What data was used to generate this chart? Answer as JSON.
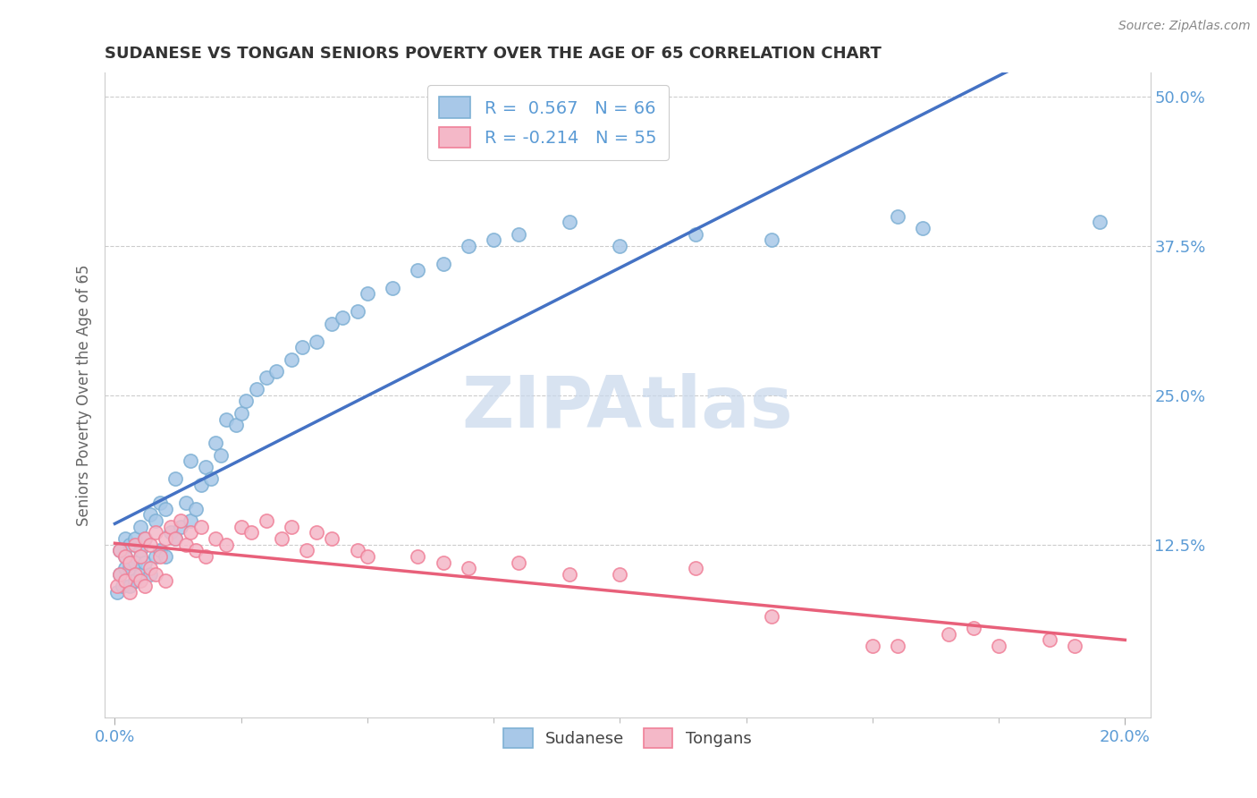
{
  "title": "SUDANESE VS TONGAN SENIORS POVERTY OVER THE AGE OF 65 CORRELATION CHART",
  "source": "Source: ZipAtlas.com",
  "ylabel": "Seniors Poverty Over the Age of 65",
  "xlim": [
    -0.002,
    0.205
  ],
  "ylim": [
    -0.02,
    0.52
  ],
  "xticks": [
    0.0,
    0.2
  ],
  "xtick_labels": [
    "0.0%",
    "20.0%"
  ],
  "yticks": [
    0.125,
    0.25,
    0.375,
    0.5
  ],
  "ytick_labels": [
    "12.5%",
    "25.0%",
    "37.5%",
    "50.0%"
  ],
  "sudanese_color": "#A8C8E8",
  "tongan_color": "#F4B8C8",
  "sudanese_edge_color": "#7EB0D4",
  "tongan_edge_color": "#F08098",
  "sudanese_line_color": "#4472C4",
  "tongan_line_color": "#E8607A",
  "sudanese_R": 0.567,
  "sudanese_N": 66,
  "tongan_R": -0.214,
  "tongan_N": 55,
  "watermark": "ZIPAtlas",
  "watermark_color": "#C8D8EC",
  "background_color": "#FFFFFF",
  "grid_color": "#CCCCCC",
  "sudanese_x": [
    0.0005,
    0.001,
    0.001,
    0.0015,
    0.002,
    0.002,
    0.002,
    0.003,
    0.003,
    0.003,
    0.004,
    0.004,
    0.004,
    0.005,
    0.005,
    0.005,
    0.006,
    0.006,
    0.007,
    0.007,
    0.008,
    0.008,
    0.009,
    0.009,
    0.01,
    0.01,
    0.011,
    0.012,
    0.012,
    0.013,
    0.014,
    0.015,
    0.015,
    0.016,
    0.017,
    0.018,
    0.019,
    0.02,
    0.021,
    0.022,
    0.024,
    0.025,
    0.026,
    0.028,
    0.03,
    0.032,
    0.035,
    0.037,
    0.04,
    0.043,
    0.045,
    0.048,
    0.05,
    0.055,
    0.06,
    0.065,
    0.07,
    0.075,
    0.08,
    0.09,
    0.1,
    0.115,
    0.13,
    0.155,
    0.16,
    0.195
  ],
  "sudanese_y": [
    0.085,
    0.1,
    0.12,
    0.09,
    0.105,
    0.115,
    0.13,
    0.09,
    0.105,
    0.125,
    0.095,
    0.11,
    0.13,
    0.1,
    0.12,
    0.14,
    0.11,
    0.13,
    0.1,
    0.15,
    0.115,
    0.145,
    0.12,
    0.16,
    0.115,
    0.155,
    0.135,
    0.13,
    0.18,
    0.14,
    0.16,
    0.145,
    0.195,
    0.155,
    0.175,
    0.19,
    0.18,
    0.21,
    0.2,
    0.23,
    0.225,
    0.235,
    0.245,
    0.255,
    0.265,
    0.27,
    0.28,
    0.29,
    0.295,
    0.31,
    0.315,
    0.32,
    0.335,
    0.34,
    0.355,
    0.36,
    0.375,
    0.38,
    0.385,
    0.395,
    0.375,
    0.385,
    0.38,
    0.4,
    0.39,
    0.395
  ],
  "tongan_x": [
    0.0005,
    0.001,
    0.001,
    0.002,
    0.002,
    0.003,
    0.003,
    0.004,
    0.004,
    0.005,
    0.005,
    0.006,
    0.006,
    0.007,
    0.007,
    0.008,
    0.008,
    0.009,
    0.01,
    0.01,
    0.011,
    0.012,
    0.013,
    0.014,
    0.015,
    0.016,
    0.017,
    0.018,
    0.02,
    0.022,
    0.025,
    0.027,
    0.03,
    0.033,
    0.035,
    0.038,
    0.04,
    0.043,
    0.048,
    0.05,
    0.06,
    0.065,
    0.07,
    0.08,
    0.09,
    0.1,
    0.115,
    0.13,
    0.15,
    0.155,
    0.165,
    0.17,
    0.175,
    0.185,
    0.19
  ],
  "tongan_y": [
    0.09,
    0.1,
    0.12,
    0.095,
    0.115,
    0.085,
    0.11,
    0.1,
    0.125,
    0.095,
    0.115,
    0.09,
    0.13,
    0.105,
    0.125,
    0.1,
    0.135,
    0.115,
    0.095,
    0.13,
    0.14,
    0.13,
    0.145,
    0.125,
    0.135,
    0.12,
    0.14,
    0.115,
    0.13,
    0.125,
    0.14,
    0.135,
    0.145,
    0.13,
    0.14,
    0.12,
    0.135,
    0.13,
    0.12,
    0.115,
    0.115,
    0.11,
    0.105,
    0.11,
    0.1,
    0.1,
    0.105,
    0.065,
    0.04,
    0.04,
    0.05,
    0.055,
    0.04,
    0.045,
    0.04
  ]
}
